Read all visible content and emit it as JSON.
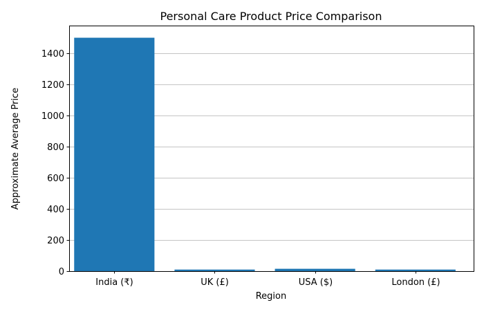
{
  "chart_data": {
    "type": "bar",
    "title": "Personal Care Product Price Comparison",
    "xlabel": "Region",
    "ylabel": "Approximate Average Price",
    "categories": [
      "India (₹)",
      "UK (£)",
      "USA ($)",
      "London (£)"
    ],
    "values": [
      1500,
      10,
      15,
      10
    ],
    "ylim": [
      0,
      1578
    ],
    "yticks": [
      0,
      200,
      400,
      600,
      800,
      1000,
      1200,
      1400
    ],
    "grid": "y",
    "bar_color": "#1f77b4"
  }
}
